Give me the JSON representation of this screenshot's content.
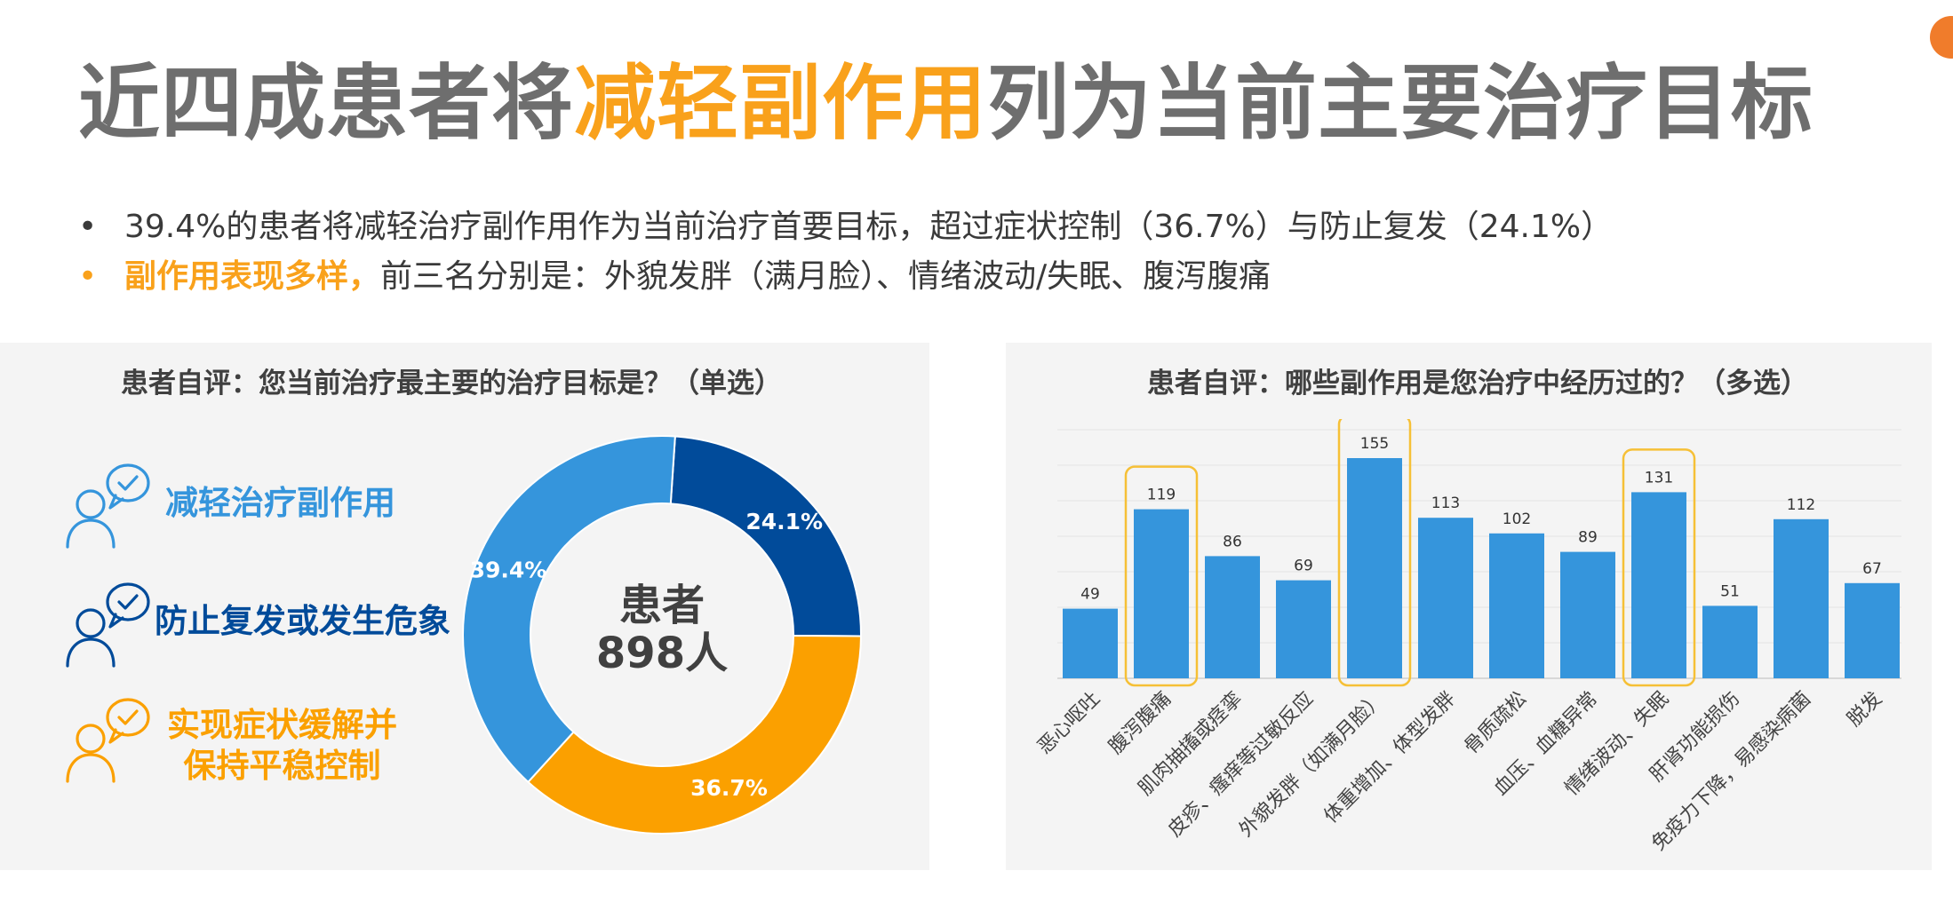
{
  "title": {
    "part1": "近四成患者将",
    "highlight": "减轻副作用",
    "part2": "列为当前主要治疗目标"
  },
  "bullets": [
    {
      "bold": "",
      "text": "39.4%的患者将减轻治疗副作用作为当前治疗首要目标，超过症状控制（36.7%）与防止复发（24.1%）"
    },
    {
      "bold": "副作用表现多样，",
      "text": "前三名分别是：外貌发胖（满月脸）、情绪波动/失眠、腹泻腹痛"
    }
  ],
  "colors": {
    "reduce_side_effects": "#3595dc",
    "prevent_relapse": "#014b9a",
    "symptom_control": "#fba000",
    "bar": "#3595dc",
    "highlight_box": "#f6c036"
  },
  "left_panel": {
    "title": "患者自评：您当前治疗最主要的治疗目标是？（单选）",
    "legend": [
      {
        "label_lines": [
          "减轻治疗副作用"
        ],
        "color": "#3595dc",
        "icon": "person-chat-check-icon"
      },
      {
        "label_lines": [
          "防止复发或发生危象"
        ],
        "color": "#014b9a",
        "icon": "person-chat-check-icon"
      },
      {
        "label_lines": [
          "实现症状缓解并",
          "保持平稳控制"
        ],
        "color": "#fba000",
        "icon": "person-chat-check-icon"
      }
    ],
    "center_label": [
      "患者",
      "898人"
    ]
  },
  "right_panel": {
    "title": "患者自评：哪些副作用是您治疗中经历过的？（多选）"
  },
  "chart_data": [
    {
      "type": "pie",
      "donut": true,
      "labels": [
        "减轻治疗副作用",
        "防止复发或发生危象",
        "实现症状缓解并保持平稳控制"
      ],
      "values": [
        39.4,
        24.1,
        36.7
      ],
      "value_labels": [
        "39.4%",
        "24.1%",
        "36.7%"
      ],
      "colors": [
        "#3595dc",
        "#014b9a",
        "#fba000"
      ],
      "center_text": [
        "患者",
        "898人"
      ],
      "title": "患者自评：您当前治疗最主要的治疗目标是？（单选）"
    },
    {
      "type": "bar",
      "title": "患者自评：哪些副作用是您治疗中经历过的？（多选）",
      "categories": [
        "恶心呕吐",
        "腹泻腹痛",
        "肌肉抽搐或痉挛",
        "皮疹、瘙痒等过敏反应",
        "外貌发胖（如满月脸）",
        "体重增加、体型发胖",
        "骨质疏松",
        "血压、血糖异常",
        "情绪波动、失眠",
        "肝肾功能损伤",
        "免疫力下降，易感染病菌",
        "脱发"
      ],
      "values": [
        49,
        119,
        86,
        69,
        155,
        113,
        102,
        89,
        131,
        51,
        112,
        67
      ],
      "highlighted": [
        "腹泻腹痛",
        "外貌发胖（如满月脸）",
        "情绪波动、失眠"
      ],
      "ylim": [
        0,
        175
      ],
      "grid": true,
      "color": "#3595dc"
    }
  ]
}
